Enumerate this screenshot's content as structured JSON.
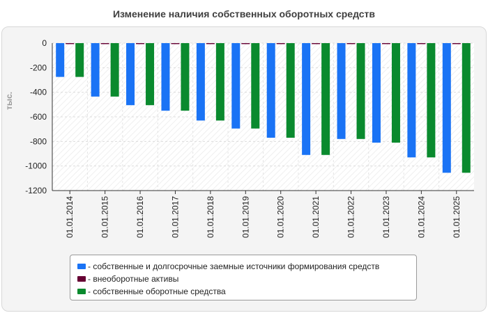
{
  "chart_data": {
    "type": "bar",
    "title": "Изменение наличия собственных оборотных средств",
    "xlabel": "",
    "ylabel": "тыс.",
    "ylim": [
      -1200,
      0
    ],
    "yticks": [
      0,
      -200,
      -400,
      -600,
      -800,
      -1000,
      -1200
    ],
    "grid": true,
    "legend_position": "bottom",
    "categories": [
      "01.01.2014",
      "01.01.2015",
      "01.01.2016",
      "01.01.2017",
      "01.01.2018",
      "01.01.2019",
      "01.01.2020",
      "01.01.2021",
      "01.01.2022",
      "01.01.2023",
      "01.01.2024",
      "01.01.2025"
    ],
    "series": [
      {
        "name": "- собственные и долгосрочные заемные источники формирования средств",
        "color": "#1a73f5",
        "values": [
          -275,
          -435,
          -505,
          -550,
          -630,
          -695,
          -770,
          -910,
          -780,
          -810,
          -930,
          -1055
        ]
      },
      {
        "name": "- внеоборотные активы",
        "color": "#660033",
        "values": [
          -8,
          -8,
          -8,
          -8,
          -8,
          -8,
          -8,
          -8,
          -8,
          -8,
          -8,
          -8
        ]
      },
      {
        "name": "- собственные оборотные средства",
        "color": "#0a8a2e",
        "values": [
          -275,
          -435,
          -505,
          -550,
          -630,
          -695,
          -770,
          -910,
          -780,
          -810,
          -930,
          -1055
        ]
      }
    ]
  }
}
